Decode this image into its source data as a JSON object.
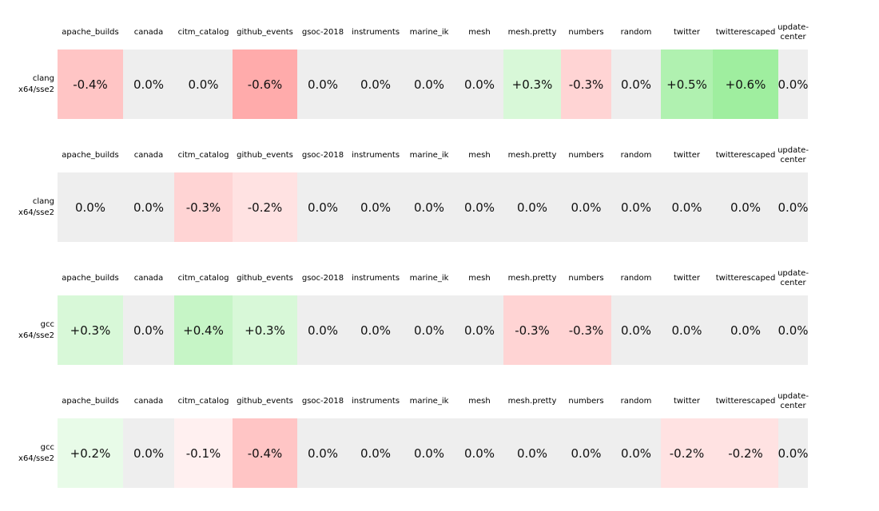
{
  "page": {
    "background": "#ffffff",
    "text_color": "#000000"
  },
  "columns": [
    "apache_builds",
    "canada",
    "citm_catalog",
    "github_events",
    "gsoc-2018",
    "instruments",
    "marine_ik",
    "mesh",
    "mesh.pretty",
    "numbers",
    "random",
    "twitter",
    "twitterescaped",
    "update-center"
  ],
  "tables": [
    {
      "row_label": "clang\nx64/sse2",
      "values": [
        "-0.4%",
        "0.0%",
        "0.0%",
        "-0.6%",
        "0.0%",
        "0.0%",
        "0.0%",
        "0.0%",
        "+0.3%",
        "-0.3%",
        "0.0%",
        "+0.5%",
        "+0.6%",
        "0.0%"
      ]
    },
    {
      "row_label": "clang\nx64/sse2",
      "values": [
        "0.0%",
        "0.0%",
        "-0.3%",
        "-0.2%",
        "0.0%",
        "0.0%",
        "0.0%",
        "0.0%",
        "0.0%",
        "0.0%",
        "0.0%",
        "0.0%",
        "0.0%",
        "0.0%"
      ]
    },
    {
      "row_label": "gcc\nx64/sse2",
      "values": [
        "+0.3%",
        "0.0%",
        "+0.4%",
        "+0.3%",
        "0.0%",
        "0.0%",
        "0.0%",
        "0.0%",
        "-0.3%",
        "-0.3%",
        "0.0%",
        "0.0%",
        "0.0%",
        "0.0%"
      ]
    },
    {
      "row_label": "gcc\nx64/sse2",
      "values": [
        "+0.2%",
        "0.0%",
        "-0.1%",
        "-0.4%",
        "0.0%",
        "0.0%",
        "0.0%",
        "0.0%",
        "0.0%",
        "0.0%",
        "0.0%",
        "-0.2%",
        "-0.2%",
        "0.0%"
      ]
    }
  ],
  "color_scale": {
    "0.0%": "#eeeeee",
    "+0.2%": "#e8fbe8",
    "+0.3%": "#d8f8d8",
    "+0.4%": "#c6f5c6",
    "+0.5%": "#b0f1b0",
    "+0.6%": "#9fee9f",
    "-0.1%": "#fff0f0",
    "-0.2%": "#ffe2e2",
    "-0.3%": "#ffd4d4",
    "-0.4%": "#ffc5c5",
    "-0.6%": "#ffabab"
  },
  "chart_data": {
    "type": "heatmap",
    "title": "",
    "columns": [
      "apache_builds",
      "canada",
      "citm_catalog",
      "github_events",
      "gsoc-2018",
      "instruments",
      "marine_ik",
      "mesh",
      "mesh.pretty",
      "numbers",
      "random",
      "twitter",
      "twitterescaped",
      "update-center"
    ],
    "rows": [
      {
        "label": "clang x64/sse2",
        "values_pct": [
          -0.4,
          0.0,
          0.0,
          -0.6,
          0.0,
          0.0,
          0.0,
          0.0,
          0.3,
          -0.3,
          0.0,
          0.5,
          0.6,
          0.0
        ]
      },
      {
        "label": "clang x64/sse2",
        "values_pct": [
          0.0,
          0.0,
          -0.3,
          -0.2,
          0.0,
          0.0,
          0.0,
          0.0,
          0.0,
          0.0,
          0.0,
          0.0,
          0.0,
          0.0
        ]
      },
      {
        "label": "gcc x64/sse2",
        "values_pct": [
          0.3,
          0.0,
          0.4,
          0.3,
          0.0,
          0.0,
          0.0,
          0.0,
          -0.3,
          -0.3,
          0.0,
          0.0,
          0.0,
          0.0
        ]
      },
      {
        "label": "gcc x64/sse2",
        "values_pct": [
          0.2,
          0.0,
          -0.1,
          -0.4,
          0.0,
          0.0,
          0.0,
          0.0,
          0.0,
          0.0,
          0.0,
          -0.2,
          -0.2,
          0.0
        ]
      }
    ],
    "value_format": "signed percent, one decimal",
    "color_coding": {
      "negative": "red shades",
      "positive": "green shades",
      "zero": "#eeeeee"
    },
    "legend_position": "none",
    "grid": false
  }
}
